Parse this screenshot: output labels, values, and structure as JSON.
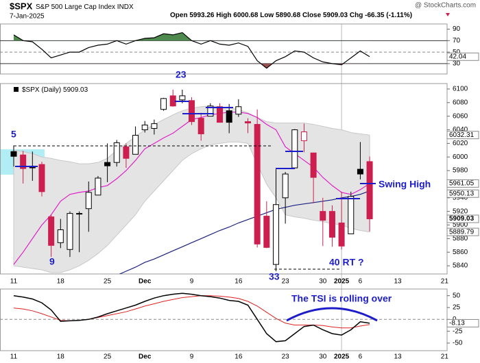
{
  "header": {
    "symbol": "$SPX",
    "name": "S&P 500 Large Cap Index",
    "exchange": "INDX",
    "date": "7-Jan-2025",
    "open": "Open",
    "high": "High",
    "low": "Low",
    "close": "Close",
    "chg_label": "Chg",
    "chg": "-66.35 (-1.11%)",
    "watermark": "@ StockCharts.com"
  },
  "annotations": {
    "wave_5": "5",
    "wave_9": "9",
    "wave_23": "23",
    "wave_33": "33",
    "wave_40": "40 RT  ?",
    "swing_high": "Swing High",
    "tsi_note": "The TSI is rolling over"
  },
  "chart_data": [
    {
      "type": "candlestick",
      "legend": "$SPX (Daily)",
      "categories": [
        "11",
        null,
        null,
        null,
        null,
        "18",
        null,
        null,
        null,
        null,
        "25",
        null,
        null,
        null,
        "Dec",
        null,
        null,
        null,
        null,
        "9",
        null,
        null,
        null,
        null,
        "16",
        null,
        null,
        null,
        null,
        "23",
        null,
        null,
        null,
        "30",
        null,
        "2025",
        null,
        "6",
        null,
        null,
        null,
        "13",
        null,
        null,
        null,
        null,
        "21"
      ],
      "open": [
        6008,
        6003,
        5985,
        5989,
        5912,
        5874,
        5864,
        5917,
        5924,
        5944,
        5992,
        5992,
        6015,
        6004,
        6040,
        6042,
        6070,
        6090,
        6084,
        6083,
        6057,
        6060,
        6074,
        6068,
        6063,
        6052,
        6048,
        5913,
        5842,
        5940,
        5984,
        6024,
        6006,
        5920,
        5920,
        5903,
        5887,
        5982,
        5993.26,
        null,
        null,
        null,
        null,
        null,
        null,
        null,
        null
      ],
      "high": [
        6017,
        6009,
        6008,
        5993,
        5915,
        5909,
        5920,
        5920,
        5964,
        5972,
        6020,
        6025,
        6020,
        6045,
        6053,
        6055,
        6087,
        6099,
        6099,
        6088,
        6065,
        6079,
        6079,
        6078,
        6085,
        6057,
        6070,
        5935,
        5982,
        5978,
        6041,
        6049,
        6006,
        5940,
        5929,
        5949,
        5949,
        6022,
        6000.68,
        null,
        null,
        null,
        null,
        null,
        null,
        null,
        null
      ],
      "low": [
        5986,
        5961,
        5965,
        5942,
        5853,
        5866,
        5853,
        5860,
        5890,
        5944,
        5963,
        5986,
        5984,
        6004,
        6036,
        6033,
        6068,
        6074,
        6079,
        6047,
        6024,
        6060,
        6051,
        6035,
        6059,
        6035,
        5867,
        5866,
        5832,
        5902,
        5983,
        6007,
        5932,
        5869,
        5868,
        5864,
        5888,
        5967,
        5890.68,
        null,
        null,
        null,
        null,
        null,
        null,
        null,
        null
      ],
      "close": [
        6001,
        5983,
        5985,
        5949,
        5870,
        5893,
        5917,
        5917,
        5948,
        5969,
        5987,
        6021,
        5998,
        6032,
        6047,
        6049,
        6086,
        6075,
        6090,
        6052,
        6034,
        6075,
        6051,
        6051,
        6074,
        6050,
        5872,
        5867,
        5930,
        5975,
        6040,
        6037,
        5970,
        5907,
        5882,
        5869,
        5942,
        5975,
        5909.03,
        null,
        null,
        null,
        null,
        null,
        null,
        null,
        null
      ],
      "up_color": "#000000",
      "down_color": "#cc1f4f",
      "bollinger": {
        "color": "#e4e4e4",
        "upper": [
          6010,
          6008,
          6005,
          6000,
          5998,
          5995,
          5993,
          5990,
          5990,
          5992,
          5998,
          6010,
          6020,
          6030,
          6040,
          6048,
          6055,
          6062,
          6068,
          6072,
          6074,
          6075,
          6074,
          6072,
          6070,
          6065,
          6058,
          6052,
          6050,
          6050,
          6050,
          6050,
          6048,
          6045,
          6042,
          6040,
          6036,
          6034,
          6032.31,
          null,
          null,
          null,
          null,
          null,
          null,
          null,
          null
        ],
        "lower": [
          5840,
          5838,
          5836,
          5834,
          5830,
          5830,
          5834,
          5840,
          5848,
          5858,
          5870,
          5885,
          5900,
          5915,
          5935,
          5950,
          5965,
          5980,
          5995,
          6005,
          6012,
          6018,
          6020,
          6022,
          6022,
          6020,
          5990,
          5960,
          5940,
          5915,
          5912,
          5910,
          5907,
          5905,
          5902,
          5900,
          5895,
          5892,
          5889.79,
          null,
          null,
          null,
          null,
          null,
          null,
          null,
          null
        ]
      },
      "moving_averages": [
        {
          "color": "#e020c8",
          "values": [
            5842,
            5860,
            5880,
            5900,
            5915,
            5935,
            5945,
            5948,
            5950,
            5955,
            5958,
            5968,
            5980,
            5995,
            6012,
            6020,
            6028,
            6035,
            6045,
            6055,
            6058,
            6062,
            6064,
            6066,
            6066,
            6064,
            6058,
            6048,
            6040,
            6015,
            6005,
            5995,
            5985,
            5970,
            5958,
            5948,
            5945,
            5952,
            5961.05,
            null,
            null,
            null,
            null,
            null,
            null,
            null,
            null
          ]
        },
        {
          "color": "#1a2080",
          "values": [
            null,
            null,
            null,
            null,
            null,
            null,
            null,
            null,
            null,
            null,
            null,
            5826,
            5832,
            5838,
            5845,
            5850,
            5856,
            5862,
            5868,
            5874,
            5880,
            5886,
            5892,
            5897,
            5903,
            5908,
            5913,
            5918,
            5923,
            5926,
            5929,
            5931,
            5933,
            5935,
            5937,
            5940,
            5942,
            5945,
            5950.13,
            null,
            null,
            null,
            null,
            null,
            null,
            null,
            null
          ]
        }
      ],
      "ylim": [
        5828,
        6108
      ],
      "yticks": [
        5840,
        5860,
        5880,
        5900,
        5920,
        5940,
        5960,
        5980,
        6000,
        6020,
        6040,
        6060,
        6080,
        6100
      ]
    },
    {
      "type": "line",
      "color": "#000000",
      "overbought_color": "#4e8a4e",
      "oversold_color": "#9a4e50",
      "values": [
        80,
        70,
        68,
        55,
        40,
        45,
        50,
        50,
        58,
        62,
        64,
        70,
        64,
        70,
        74,
        75,
        82,
        80,
        84,
        70,
        64,
        70,
        64,
        62,
        66,
        60,
        35,
        22,
        35,
        42,
        52,
        50,
        40,
        33,
        30,
        28,
        40,
        52,
        42.04,
        null,
        null,
        null,
        null,
        null,
        null,
        null,
        null
      ],
      "ylim": [
        12,
        99
      ],
      "yticks": [
        30,
        50,
        70,
        90
      ],
      "levels": [
        30,
        70
      ]
    },
    {
      "type": "line",
      "series": [
        {
          "color": "#000000",
          "values": [
            50,
            47,
            43,
            35,
            20,
            -4,
            -3,
            -2,
            0,
            5,
            12,
            18,
            24,
            30,
            38,
            45,
            50,
            53,
            55,
            53,
            50,
            48,
            45,
            40,
            38,
            30,
            0,
            -30,
            -47,
            -45,
            -30,
            -15,
            -12,
            -22,
            -30,
            -33,
            -22,
            -5,
            -8.13,
            null,
            null,
            null,
            null,
            null,
            null,
            null,
            null
          ]
        },
        {
          "color": "#e02020",
          "values": [
            24,
            22,
            18,
            12,
            5,
            -2,
            -3,
            -2,
            0,
            4,
            8,
            12,
            16,
            22,
            28,
            33,
            38,
            42,
            46,
            48,
            50,
            50,
            49,
            47,
            44,
            38,
            28,
            15,
            2,
            -8,
            -12,
            -12,
            -12,
            -13,
            -16,
            -18,
            -18,
            -14,
            -11,
            null,
            null,
            null,
            null,
            null,
            null,
            null,
            null
          ]
        }
      ],
      "ylim": [
        -66,
        64
      ],
      "yticks": [
        -50,
        -25,
        0,
        25,
        50
      ]
    }
  ]
}
